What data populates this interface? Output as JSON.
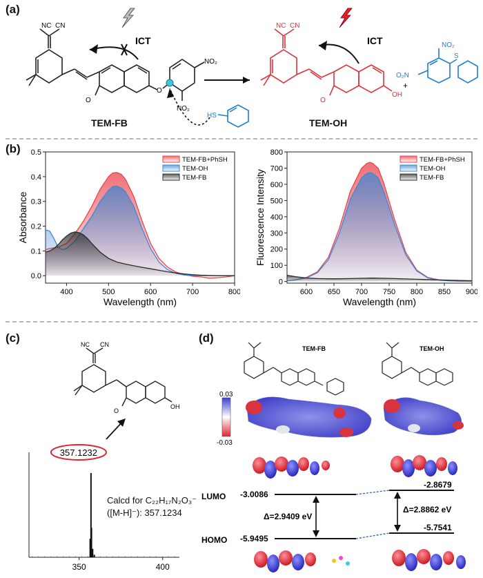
{
  "panels": {
    "a": "(a)",
    "b": "(b)",
    "c": "(c)",
    "d": "(d)"
  },
  "scheme": {
    "left_compound": "TEM-FB",
    "right_compound": "TEM-OH",
    "ict_left": "ICT",
    "ict_right": "ICT",
    "plus": "+",
    "thiol_label": "HS",
    "nitro": "NO₂",
    "nitro_left": "O₂N",
    "sulfur": "S",
    "oxygen": "O",
    "oh": "OH",
    "nc_left": "NC",
    "cn_right": "CN",
    "carbonyl_o": "O"
  },
  "chart_data": [
    {
      "type": "line",
      "ylabel": "Absorbance",
      "xlabel": "Wavelength (nm)",
      "xlim": [
        350,
        800
      ],
      "ylim": [
        -0.03,
        0.5
      ],
      "x_ticks": [
        400,
        500,
        600,
        700,
        800
      ],
      "y_ticks": [
        0.0,
        0.1,
        0.2,
        0.3,
        0.4,
        0.5
      ],
      "y_tick_labels": [
        "0.0",
        "0.1",
        "0.2",
        "0.3",
        "0.4",
        "0.5"
      ],
      "legend_position": "top-right",
      "series": [
        {
          "name": "TEM-FB+PhSH",
          "color": "#e8424a",
          "x": [
            350,
            360,
            380,
            400,
            420,
            440,
            460,
            480,
            500,
            510,
            520,
            530,
            540,
            560,
            580,
            600,
            620,
            640,
            660,
            680,
            700,
            720,
            740,
            760,
            780,
            800
          ],
          "y": [
            0.105,
            0.11,
            0.115,
            0.13,
            0.17,
            0.22,
            0.28,
            0.35,
            0.4,
            0.415,
            0.417,
            0.41,
            0.39,
            0.32,
            0.22,
            0.13,
            0.07,
            0.035,
            0.015,
            0.004,
            -0.002,
            -0.005,
            -0.01,
            -0.008,
            -0.005,
            0.0
          ]
        },
        {
          "name": "TEM-OH",
          "color": "#3f86d4",
          "x": [
            350,
            360,
            370,
            380,
            390,
            400,
            420,
            440,
            460,
            480,
            500,
            510,
            520,
            530,
            540,
            560,
            580,
            600,
            620,
            640,
            660,
            680,
            700,
            720,
            740,
            760,
            780,
            800
          ],
          "y": [
            0.185,
            0.18,
            0.15,
            0.115,
            0.105,
            0.11,
            0.14,
            0.19,
            0.24,
            0.3,
            0.345,
            0.36,
            0.362,
            0.355,
            0.34,
            0.28,
            0.19,
            0.11,
            0.055,
            0.025,
            0.01,
            0.003,
            0.0,
            0.0,
            0.0,
            0.0,
            0.0,
            0.0
          ]
        },
        {
          "name": "TEM-FB",
          "color": "#2b2b2b",
          "x": [
            350,
            360,
            370,
            380,
            390,
            400,
            410,
            420,
            430,
            440,
            450,
            460,
            480,
            500,
            520,
            540,
            560,
            580,
            600,
            620,
            640,
            660,
            680,
            700,
            720,
            740,
            760,
            780,
            800
          ],
          "y": [
            0.095,
            0.1,
            0.11,
            0.125,
            0.145,
            0.16,
            0.172,
            0.177,
            0.174,
            0.165,
            0.15,
            0.13,
            0.095,
            0.07,
            0.055,
            0.047,
            0.04,
            0.034,
            0.028,
            0.022,
            0.016,
            0.011,
            0.007,
            0.004,
            0.002,
            0.001,
            0.0,
            0.0,
            0.0
          ]
        }
      ]
    },
    {
      "type": "line",
      "ylabel": "Fluorescence Intensity",
      "xlabel": "Wavelength (nm)",
      "xlim": [
        565,
        900
      ],
      "ylim": [
        -10,
        800
      ],
      "x_ticks": [
        600,
        650,
        700,
        750,
        800,
        850,
        900
      ],
      "y_ticks": [
        0,
        100,
        200,
        300,
        400,
        500,
        600,
        700,
        800
      ],
      "legend_position": "top-right",
      "series": [
        {
          "name": "TEM-FB+PhSH",
          "color": "#e8424a",
          "x": [
            565,
            580,
            600,
            620,
            640,
            660,
            680,
            700,
            710,
            715,
            720,
            730,
            740,
            760,
            780,
            800,
            820,
            840,
            860,
            880,
            900
          ],
          "y": [
            5,
            10,
            25,
            60,
            150,
            330,
            560,
            700,
            730,
            735,
            730,
            700,
            610,
            380,
            180,
            70,
            25,
            10,
            4,
            2,
            1
          ]
        },
        {
          "name": "TEM-OH",
          "color": "#3f86d4",
          "x": [
            565,
            580,
            600,
            620,
            640,
            660,
            680,
            700,
            710,
            715,
            720,
            730,
            740,
            760,
            780,
            800,
            820,
            840,
            860,
            880,
            900
          ],
          "y": [
            5,
            10,
            22,
            55,
            135,
            300,
            510,
            640,
            668,
            672,
            668,
            640,
            560,
            350,
            165,
            65,
            22,
            9,
            4,
            2,
            1
          ]
        },
        {
          "name": "TEM-FB",
          "color": "#2b2b2b",
          "x": [
            565,
            580,
            600,
            620,
            640,
            660,
            680,
            700,
            720,
            740,
            760,
            780,
            800,
            820,
            840,
            860,
            880,
            900
          ],
          "y": [
            38,
            30,
            22,
            18,
            17,
            17,
            18,
            20,
            21,
            20,
            18,
            16,
            14,
            12,
            10,
            8,
            6,
            5
          ]
        }
      ]
    },
    {
      "type": "bar",
      "xlabel": "",
      "ylabel": "",
      "xlim": [
        320,
        410
      ],
      "x_ticks": [
        350,
        400
      ],
      "categories": [
        "356.6",
        "357.1",
        "357.4",
        "358.1",
        "359.1"
      ],
      "values": [
        0.22,
        1.0,
        0.35,
        0.1,
        0.03
      ],
      "peak_label": "357.1232",
      "calcd_line1": "Calcd for C₂₂H₁₇N₂O₃⁻",
      "calcd_line2": "([M-H]⁻): 357.1234"
    }
  ],
  "dft": {
    "left_molecule": "TEM-FB",
    "right_molecule": "TEM-OH",
    "scale_max": "0.03",
    "scale_min": "-0.03",
    "lumo_label": "LUMO",
    "homo_label": "HOMO",
    "fb_lumo": "-3.0086",
    "fb_homo": "-5.9495",
    "fb_gap": "Δ=2.9409 eV",
    "oh_lumo": "-2.8679",
    "oh_homo": "-5.7541",
    "oh_gap": "Δ=2.8862 eV",
    "colors": {
      "positive": "#3b3fd6",
      "negative": "#e0232e",
      "neutral": "#ffffff"
    }
  }
}
